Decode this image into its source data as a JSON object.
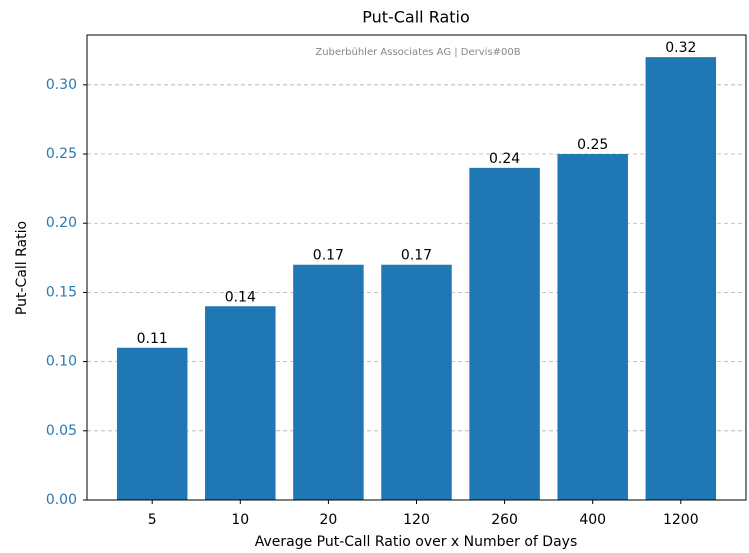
{
  "chart_data": {
    "type": "bar",
    "title": "Put-Call Ratio",
    "subtitle": "Zuberbühler Associates AG | Dervis#00B",
    "xlabel": "Average Put-Call Ratio over x Number of Days",
    "ylabel": "Put-Call Ratio",
    "categories": [
      "5",
      "10",
      "20",
      "120",
      "260",
      "400",
      "1200"
    ],
    "values": [
      0.11,
      0.14,
      0.17,
      0.17,
      0.24,
      0.25,
      0.32
    ],
    "color": "#1f77b4",
    "tick_color": "#2a7ab0",
    "ylim": [
      0,
      0.336
    ],
    "yticks": [
      {
        "value": 0,
        "label": "0.00"
      },
      {
        "value": 0.05,
        "label": "0.05"
      },
      {
        "value": 0.1,
        "label": "0.10"
      },
      {
        "value": 0.15,
        "label": "0.15"
      },
      {
        "value": 0.2,
        "label": "0.20"
      },
      {
        "value": 0.25,
        "label": "0.25"
      },
      {
        "value": 0.3,
        "label": "0.30"
      }
    ],
    "grid": true
  }
}
